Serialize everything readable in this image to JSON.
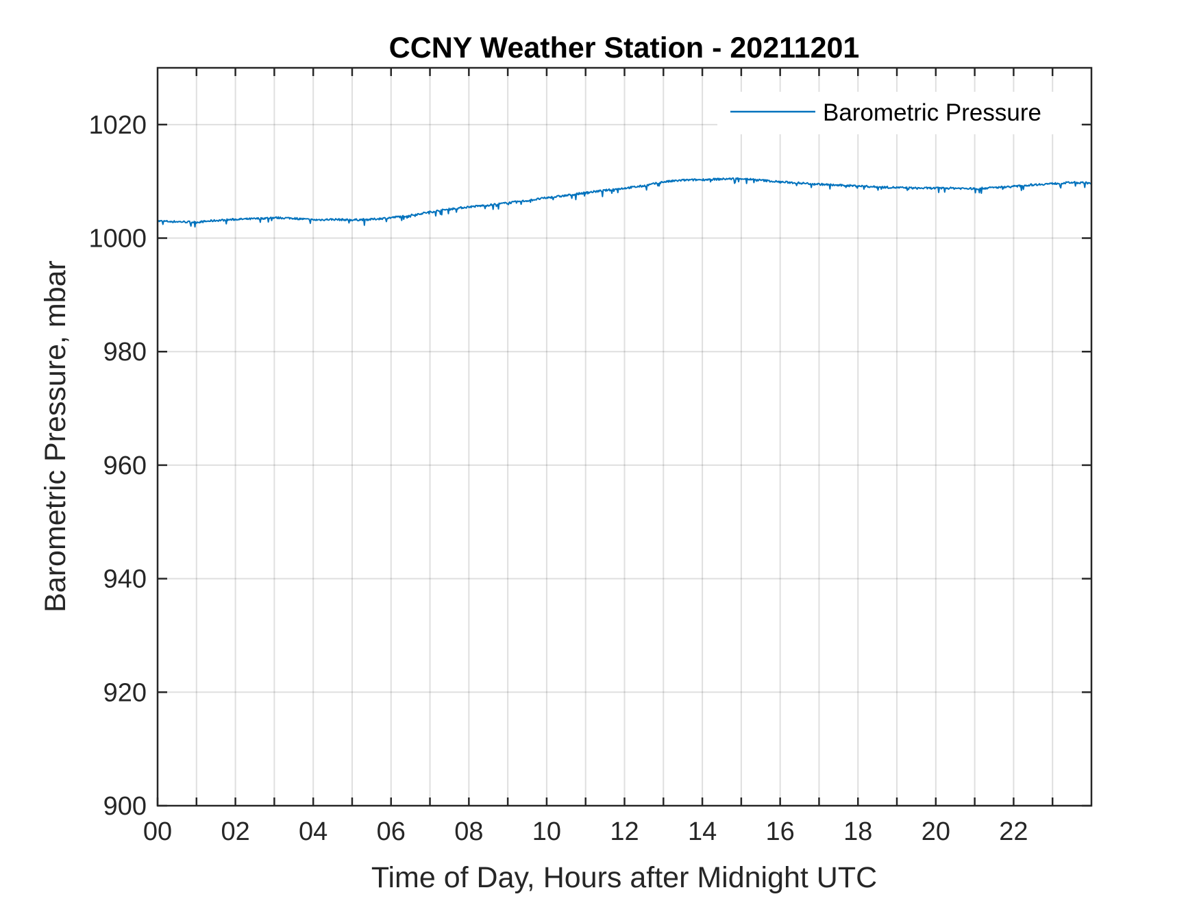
{
  "chart_data": {
    "type": "line",
    "title": "CCNY Weather Station - 20211201",
    "xlabel": "Time of Day, Hours after Midnight UTC",
    "ylabel": "Barometric Pressure, mbar",
    "xlim": [
      0,
      24
    ],
    "ylim": [
      900,
      1030
    ],
    "x_ticks": [
      0,
      2,
      4,
      6,
      8,
      10,
      12,
      14,
      16,
      18,
      20,
      22
    ],
    "x_tick_labels": [
      "00",
      "02",
      "04",
      "06",
      "08",
      "10",
      "12",
      "14",
      "16",
      "18",
      "20",
      "22"
    ],
    "x_minor_grid_step": 1,
    "y_ticks": [
      900,
      920,
      940,
      960,
      980,
      1000,
      1020
    ],
    "y_tick_labels": [
      "900",
      "920",
      "940",
      "960",
      "980",
      "1000",
      "1020"
    ],
    "grid": true,
    "legend_position": "top-right",
    "series": [
      {
        "name": "Barometric Pressure",
        "color": "#0072BD",
        "x": [
          0,
          0.5,
          1,
          1.5,
          2,
          2.5,
          3,
          3.5,
          4,
          4.5,
          5,
          5.5,
          6,
          6.5,
          7,
          7.5,
          8,
          8.5,
          9,
          9.5,
          10,
          10.5,
          11,
          11.5,
          12,
          12.5,
          13,
          13.5,
          14,
          14.5,
          15,
          15.5,
          16,
          16.5,
          17,
          17.5,
          18,
          18.5,
          19,
          19.5,
          20,
          20.5,
          21,
          21.5,
          22,
          22.5,
          23,
          23.5,
          24
        ],
        "y": [
          1003.0,
          1002.9,
          1002.8,
          1003.1,
          1003.3,
          1003.4,
          1003.6,
          1003.5,
          1003.2,
          1003.3,
          1003.2,
          1003.3,
          1003.6,
          1004.0,
          1004.6,
          1005.1,
          1005.5,
          1005.8,
          1006.2,
          1006.6,
          1007.1,
          1007.5,
          1008.0,
          1008.4,
          1008.8,
          1009.2,
          1009.9,
          1010.2,
          1010.3,
          1010.4,
          1010.5,
          1010.2,
          1009.9,
          1009.7,
          1009.5,
          1009.3,
          1009.2,
          1009.0,
          1008.9,
          1008.8,
          1008.8,
          1008.8,
          1008.7,
          1008.9,
          1009.1,
          1009.4,
          1009.6,
          1009.8,
          1009.7
        ]
      }
    ]
  }
}
